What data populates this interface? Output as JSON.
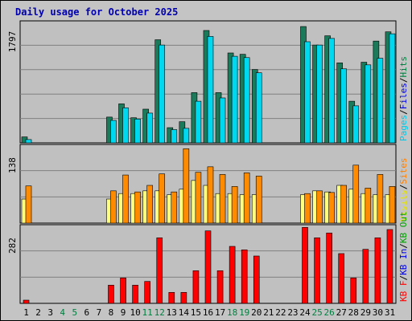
{
  "chart_data": [
    {
      "type": "bar",
      "panel": "hits-files-pages",
      "title": "Daily usage for October 2025",
      "ylabel_max": "1797",
      "legend": [
        {
          "label": "Pages",
          "color": "#00c8e6"
        },
        {
          "label": "Files",
          "color": "#0000e6"
        },
        {
          "label": "Hits",
          "color": "#008040"
        }
      ],
      "categories": [
        "1",
        "2",
        "3",
        "4",
        "5",
        "6",
        "7",
        "8",
        "9",
        "10",
        "11",
        "12",
        "13",
        "14",
        "15",
        "16",
        "17",
        "18",
        "19",
        "20",
        "21",
        "22",
        "23",
        "24",
        "25",
        "26",
        "27",
        "28",
        "29",
        "30",
        "31"
      ],
      "ylim": [
        0,
        1797
      ],
      "series": [
        {
          "name": "Hits",
          "color": "#1a7a5a",
          "values": [
            90,
            0,
            0,
            0,
            0,
            0,
            0,
            390,
            590,
            380,
            510,
            1560,
            230,
            320,
            760,
            1700,
            760,
            1360,
            1340,
            1110,
            0,
            0,
            0,
            1760,
            1480,
            1620,
            1210,
            630,
            1220,
            1540,
            1680
          ]
        },
        {
          "name": "Pages",
          "color": "#00d8f0",
          "values": [
            50,
            0,
            0,
            0,
            0,
            0,
            0,
            340,
            530,
            360,
            450,
            1480,
            200,
            220,
            630,
            1610,
            680,
            1310,
            1290,
            1060,
            0,
            0,
            0,
            1530,
            1480,
            1580,
            1120,
            560,
            1180,
            1280,
            1650
          ]
        }
      ]
    },
    {
      "type": "bar",
      "panel": "visits-sites",
      "ylabel_max": "138",
      "legend": [
        {
          "label": "Visits",
          "color": "#e6e600"
        },
        {
          "label": "Sites",
          "color": "#ff8000"
        }
      ],
      "categories": [
        "1",
        "2",
        "3",
        "4",
        "5",
        "6",
        "7",
        "8",
        "9",
        "10",
        "11",
        "12",
        "13",
        "14",
        "15",
        "16",
        "17",
        "18",
        "19",
        "20",
        "21",
        "22",
        "23",
        "24",
        "25",
        "26",
        "27",
        "28",
        "29",
        "30",
        "31"
      ],
      "ylim": [
        0,
        138
      ],
      "series": [
        {
          "name": "Visits",
          "color": "#ffff80",
          "values": [
            44,
            0,
            0,
            0,
            0,
            0,
            0,
            44,
            54,
            54,
            59,
            59,
            52,
            62,
            78,
            69,
            54,
            54,
            52,
            52,
            0,
            0,
            0,
            52,
            59,
            57,
            69,
            62,
            54,
            52,
            52
          ]
        },
        {
          "name": "Sites",
          "color": "#ff8c00",
          "values": [
            68,
            0,
            0,
            0,
            0,
            0,
            0,
            59,
            88,
            57,
            69,
            90,
            57,
            136,
            93,
            103,
            89,
            67,
            92,
            86,
            0,
            0,
            0,
            54,
            59,
            56,
            69,
            106,
            64,
            89,
            67
          ]
        }
      ]
    },
    {
      "type": "bar",
      "panel": "kbytes",
      "ylabel_max": "282",
      "legend": [
        {
          "label": "KB F",
          "color": "#ff0000"
        },
        {
          "label": "KB In",
          "color": "#0000e6"
        },
        {
          "label": "KB Out",
          "color": "#00a000"
        }
      ],
      "categories": [
        "1",
        "2",
        "3",
        "4",
        "5",
        "6",
        "7",
        "8",
        "9",
        "10",
        "11",
        "12",
        "13",
        "14",
        "15",
        "16",
        "17",
        "18",
        "19",
        "20",
        "21",
        "22",
        "23",
        "24",
        "25",
        "26",
        "27",
        "28",
        "29",
        "30",
        "31"
      ],
      "ylim": [
        0,
        282
      ],
      "series": [
        {
          "name": "KB F",
          "color": "#ff0000",
          "values": [
            12,
            0,
            0,
            0,
            0,
            0,
            0,
            68,
            95,
            68,
            82,
            245,
            41,
            41,
            122,
            271,
            122,
            213,
            200,
            177,
            0,
            0,
            0,
            284,
            245,
            263,
            186,
            95,
            202,
            245,
            276
          ]
        }
      ]
    }
  ],
  "x_tick_colors": {
    "weekday": "#000000",
    "weekend": "#008040"
  },
  "weekend_days": [
    4,
    5,
    11,
    12,
    18,
    19,
    25,
    26
  ]
}
